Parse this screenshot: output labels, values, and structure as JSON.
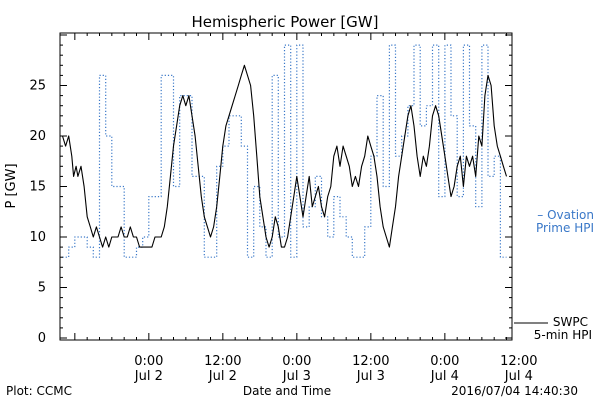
{
  "chart_data": {
    "type": "line",
    "title": "Hemispheric Power [GW]",
    "xlabel": "Date and Time",
    "ylabel": "P [GW]",
    "ylim": [
      0,
      30
    ],
    "yticks": [
      0,
      5,
      10,
      15,
      20,
      25
    ],
    "xlim": [
      -14,
      58
    ],
    "x_unit": "hours relative to 2016-07-02 00:00 UT",
    "xticks": [
      {
        "x": 0,
        "time": "0:00",
        "date": "Jul 2"
      },
      {
        "x": 12,
        "time": "12:00",
        "date": "Jul 2"
      },
      {
        "x": 24,
        "time": "0:00",
        "date": "Jul 3"
      },
      {
        "x": 36,
        "time": "12:00",
        "date": "Jul 3"
      },
      {
        "x": 48,
        "time": "0:00",
        "date": "Jul 4"
      },
      {
        "x": 60,
        "time": "12:00",
        "date": "Jul 4"
      }
    ],
    "grid": false,
    "series": [
      {
        "label_lines": [
          "SWPC",
          "5-min HPI"
        ],
        "color": "#000000",
        "style": "solid",
        "points": [
          [
            -14,
            20
          ],
          [
            -13.5,
            19
          ],
          [
            -13,
            20
          ],
          [
            -12.5,
            18
          ],
          [
            -12.2,
            16
          ],
          [
            -11.8,
            17
          ],
          [
            -11.5,
            16
          ],
          [
            -11,
            17
          ],
          [
            -10.5,
            15
          ],
          [
            -10,
            12
          ],
          [
            -9.5,
            11
          ],
          [
            -9,
            10
          ],
          [
            -8.5,
            11
          ],
          [
            -8,
            10
          ],
          [
            -7.5,
            9
          ],
          [
            -7,
            10
          ],
          [
            -6.5,
            9
          ],
          [
            -6,
            10
          ],
          [
            -5.5,
            10
          ],
          [
            -5,
            10
          ],
          [
            -4.5,
            11
          ],
          [
            -4,
            10
          ],
          [
            -3.5,
            10
          ],
          [
            -3,
            11
          ],
          [
            -2.5,
            10
          ],
          [
            -2,
            10
          ],
          [
            -1.5,
            9
          ],
          [
            -0.5,
            9
          ],
          [
            0.5,
            9
          ],
          [
            1,
            10
          ],
          [
            1.5,
            10
          ],
          [
            2,
            10
          ],
          [
            2.5,
            11
          ],
          [
            3,
            13
          ],
          [
            3.5,
            16
          ],
          [
            4,
            19
          ],
          [
            4.5,
            21
          ],
          [
            5,
            23
          ],
          [
            5.5,
            24
          ],
          [
            6,
            23
          ],
          [
            6.5,
            24
          ],
          [
            7,
            22
          ],
          [
            7.5,
            20
          ],
          [
            8,
            17
          ],
          [
            8.5,
            14
          ],
          [
            9,
            12
          ],
          [
            9.5,
            11
          ],
          [
            10,
            10
          ],
          [
            10.5,
            11
          ],
          [
            11,
            13
          ],
          [
            11.5,
            16
          ],
          [
            12,
            19
          ],
          [
            12.5,
            21
          ],
          [
            13,
            22
          ],
          [
            13.5,
            23
          ],
          [
            14,
            24
          ],
          [
            14.5,
            25
          ],
          [
            15,
            26
          ],
          [
            15.5,
            27
          ],
          [
            16,
            26
          ],
          [
            16.5,
            25
          ],
          [
            17,
            22
          ],
          [
            17.5,
            18
          ],
          [
            18,
            14
          ],
          [
            18.5,
            12
          ],
          [
            19,
            10
          ],
          [
            19.5,
            9
          ],
          [
            20,
            10
          ],
          [
            20.5,
            12
          ],
          [
            21,
            11
          ],
          [
            21.5,
            9
          ],
          [
            22,
            9
          ],
          [
            22.5,
            10
          ],
          [
            23,
            12
          ],
          [
            23.5,
            14
          ],
          [
            24,
            16
          ],
          [
            24.5,
            14
          ],
          [
            25,
            12
          ],
          [
            25.5,
            14
          ],
          [
            26,
            16
          ],
          [
            26.5,
            13
          ],
          [
            27,
            14
          ],
          [
            27.5,
            15
          ],
          [
            28,
            13
          ],
          [
            28.5,
            12
          ],
          [
            29,
            14
          ],
          [
            29.5,
            15
          ],
          [
            30,
            18
          ],
          [
            30.5,
            19
          ],
          [
            31,
            17
          ],
          [
            31.5,
            19
          ],
          [
            32,
            18
          ],
          [
            32.5,
            17
          ],
          [
            33,
            15
          ],
          [
            33.5,
            16
          ],
          [
            34,
            15
          ],
          [
            34.5,
            17
          ],
          [
            35,
            18
          ],
          [
            35.5,
            20
          ],
          [
            36,
            19
          ],
          [
            36.5,
            18
          ],
          [
            37,
            16
          ],
          [
            37.5,
            13
          ],
          [
            38,
            11
          ],
          [
            38.5,
            10
          ],
          [
            39,
            9
          ],
          [
            39.5,
            11
          ],
          [
            40,
            13
          ],
          [
            40.5,
            16
          ],
          [
            41,
            18
          ],
          [
            41.5,
            20
          ],
          [
            42,
            22
          ],
          [
            42.5,
            23
          ],
          [
            43,
            21
          ],
          [
            43.5,
            18
          ],
          [
            44,
            16
          ],
          [
            44.5,
            18
          ],
          [
            45,
            17
          ],
          [
            45.5,
            19
          ],
          [
            46,
            22
          ],
          [
            46.5,
            23
          ],
          [
            47,
            22
          ],
          [
            47.5,
            20
          ],
          [
            48,
            18
          ],
          [
            48.5,
            16
          ],
          [
            49,
            14
          ],
          [
            49.5,
            15
          ],
          [
            50,
            17
          ],
          [
            50.5,
            18
          ],
          [
            51,
            15
          ],
          [
            51.5,
            18
          ],
          [
            52,
            17
          ],
          [
            52.5,
            18
          ],
          [
            53,
            16
          ],
          [
            53.5,
            20
          ],
          [
            54,
            19
          ],
          [
            54.5,
            24
          ],
          [
            55,
            26
          ],
          [
            55.5,
            25
          ],
          [
            56,
            21
          ],
          [
            56.5,
            19
          ],
          [
            57,
            18
          ],
          [
            57.5,
            17
          ],
          [
            58,
            16
          ]
        ]
      },
      {
        "label_lines": [
          "– Ovation",
          "Prime HPI"
        ],
        "color": "#3a78c8",
        "style": "dotted",
        "points": [
          [
            -14,
            8
          ],
          [
            -13,
            8
          ],
          [
            -13,
            9
          ],
          [
            -12,
            9
          ],
          [
            -12,
            10
          ],
          [
            -10,
            10
          ],
          [
            -10,
            9
          ],
          [
            -9,
            9
          ],
          [
            -9,
            8
          ],
          [
            -8,
            8
          ],
          [
            -8,
            26
          ],
          [
            -7,
            26
          ],
          [
            -7,
            20
          ],
          [
            -6,
            20
          ],
          [
            -6,
            15
          ],
          [
            -4,
            15
          ],
          [
            -4,
            8
          ],
          [
            -2,
            8
          ],
          [
            -2,
            9
          ],
          [
            -1,
            9
          ],
          [
            -1,
            10
          ],
          [
            0,
            10
          ],
          [
            0,
            14
          ],
          [
            2,
            14
          ],
          [
            2,
            26
          ],
          [
            4,
            26
          ],
          [
            4,
            15
          ],
          [
            5,
            15
          ],
          [
            5,
            24
          ],
          [
            7,
            24
          ],
          [
            7,
            16
          ],
          [
            9,
            16
          ],
          [
            9,
            8
          ],
          [
            11,
            8
          ],
          [
            11,
            17
          ],
          [
            12,
            17
          ],
          [
            12,
            19
          ],
          [
            13,
            19
          ],
          [
            13,
            22
          ],
          [
            15,
            22
          ],
          [
            15,
            19
          ],
          [
            16,
            19
          ],
          [
            16,
            8
          ],
          [
            17,
            8
          ],
          [
            17,
            15
          ],
          [
            18,
            15
          ],
          [
            18,
            11
          ],
          [
            19,
            11
          ],
          [
            19,
            8
          ],
          [
            20,
            8
          ],
          [
            20,
            26
          ],
          [
            21,
            26
          ],
          [
            21,
            10
          ],
          [
            22,
            10
          ],
          [
            22,
            29
          ],
          [
            23,
            29
          ],
          [
            23,
            8
          ],
          [
            24,
            8
          ],
          [
            24,
            29
          ],
          [
            25,
            29
          ],
          [
            25,
            11
          ],
          [
            26,
            11
          ],
          [
            26,
            13
          ],
          [
            27,
            13
          ],
          [
            27,
            16
          ],
          [
            28,
            16
          ],
          [
            28,
            12
          ],
          [
            29,
            12
          ],
          [
            29,
            10
          ],
          [
            30,
            10
          ],
          [
            30,
            14
          ],
          [
            31,
            14
          ],
          [
            31,
            12
          ],
          [
            32,
            12
          ],
          [
            32,
            10
          ],
          [
            33,
            10
          ],
          [
            33,
            8
          ],
          [
            35,
            8
          ],
          [
            35,
            11
          ],
          [
            36,
            11
          ],
          [
            36,
            18
          ],
          [
            37,
            18
          ],
          [
            37,
            24
          ],
          [
            38,
            24
          ],
          [
            38,
            15
          ],
          [
            39,
            15
          ],
          [
            39,
            29
          ],
          [
            40,
            29
          ],
          [
            40,
            18
          ],
          [
            41,
            18
          ],
          [
            41,
            20
          ],
          [
            42,
            20
          ],
          [
            42,
            23
          ],
          [
            43,
            23
          ],
          [
            43,
            29
          ],
          [
            44,
            29
          ],
          [
            44,
            21
          ],
          [
            45,
            21
          ],
          [
            45,
            23
          ],
          [
            46,
            23
          ],
          [
            46,
            29
          ],
          [
            47,
            29
          ],
          [
            47,
            14
          ],
          [
            48,
            14
          ],
          [
            48,
            29
          ],
          [
            49,
            29
          ],
          [
            49,
            22
          ],
          [
            50,
            22
          ],
          [
            50,
            14
          ],
          [
            51,
            14
          ],
          [
            51,
            29
          ],
          [
            52,
            29
          ],
          [
            52,
            21
          ],
          [
            53,
            21
          ],
          [
            53,
            13
          ],
          [
            54,
            13
          ],
          [
            54,
            29
          ],
          [
            55,
            29
          ],
          [
            55,
            16
          ],
          [
            56,
            16
          ],
          [
            56,
            18
          ],
          [
            57,
            18
          ],
          [
            57,
            8
          ],
          [
            58,
            8
          ]
        ]
      }
    ]
  },
  "footer": {
    "left": "Plot: CCMC",
    "center": "Date and Time",
    "right": "2016/07/04 14:40:30"
  }
}
